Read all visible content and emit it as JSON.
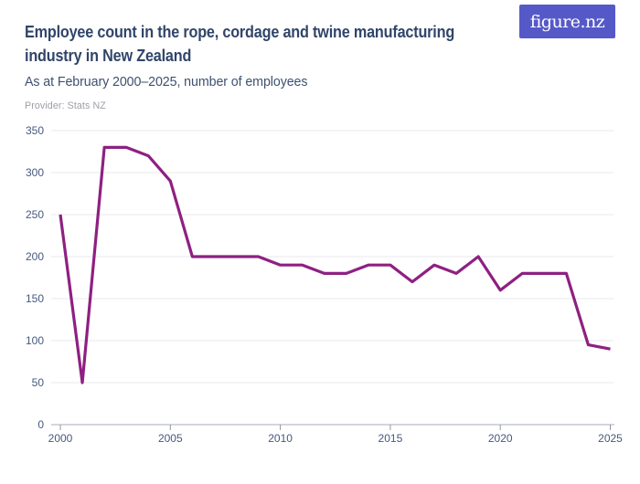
{
  "header": {
    "title": "Employee count in the rope, cordage and twine manufacturing industry in New Zealand",
    "title_line1": "Employee count in the rope, cordage and twine manufacturing",
    "title_line2": "industry in New Zealand",
    "subtitle": "As at February 2000–2025, number of employees",
    "provider": "Provider: Stats NZ",
    "logo_text": "figure.nz"
  },
  "colors": {
    "title": "#304569",
    "subtitle": "#3d5170",
    "provider": "#9b9fa6",
    "logo_bg": "#5559c8",
    "logo_text": "#ffffff",
    "line": "#8e2082",
    "gridline": "#e9e9ee",
    "axis_line": "#a8aeb9",
    "tick_mark": "#8f96a5",
    "tick_label": "#46597e"
  },
  "chart_data": {
    "type": "line",
    "title": "Employee count in the rope, cordage and twine manufacturing industry in New Zealand",
    "subtitle": "As at February 2000–2025, number of employees",
    "series_name": "Number of employees",
    "x": [
      2000,
      2001,
      2002,
      2003,
      2004,
      2005,
      2006,
      2007,
      2008,
      2009,
      2010,
      2011,
      2012,
      2013,
      2014,
      2015,
      2016,
      2017,
      2018,
      2019,
      2020,
      2021,
      2022,
      2023,
      2024,
      2025
    ],
    "values": [
      250,
      50,
      330,
      330,
      320,
      290,
      200,
      200,
      200,
      200,
      190,
      190,
      180,
      180,
      190,
      190,
      170,
      190,
      180,
      200,
      160,
      180,
      180,
      180,
      95,
      90
    ],
    "xlabel": "",
    "ylabel": "",
    "ylim": [
      0,
      350
    ],
    "xticks": [
      2000,
      2005,
      2010,
      2015,
      2020,
      2025
    ],
    "yticks": [
      0,
      50,
      100,
      150,
      200,
      250,
      300,
      350
    ],
    "grid": true,
    "legend_position": "none"
  }
}
